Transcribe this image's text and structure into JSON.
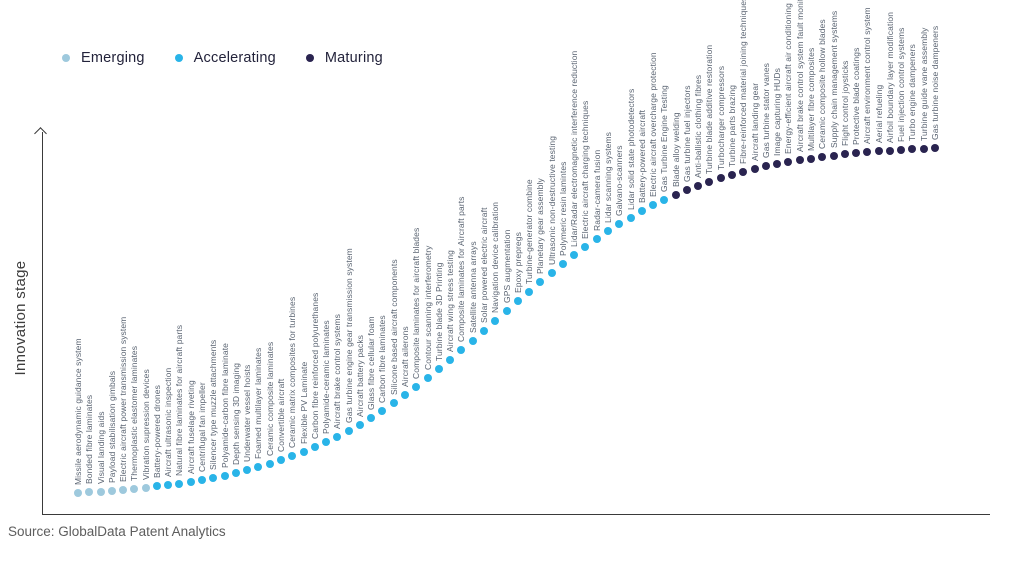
{
  "legend": [
    {
      "label": "Emerging",
      "color": "#9ec9dd"
    },
    {
      "label": "Accelerating",
      "color": "#29b4e8"
    },
    {
      "label": "Maturing",
      "color": "#2a2450"
    }
  ],
  "y_axis_title": "Innovation stage",
  "source_line": "Source: GlobalData Patent Analytics",
  "chart_data": {
    "type": "scatter",
    "title": "",
    "xlabel": "",
    "ylabel": "Innovation stage",
    "legend_position": "top-left",
    "grid": false,
    "curve_shape": "s-curve ascending left-to-right",
    "stage_colors": {
      "Emerging": "#9ec9dd",
      "Accelerating": "#29b4e8",
      "Maturing": "#2a2450"
    },
    "items": [
      {
        "label": "Missile aerodynamic guidance system",
        "stage": "Emerging"
      },
      {
        "label": "Bonded fibre laminates",
        "stage": "Emerging"
      },
      {
        "label": "Visual landing aids",
        "stage": "Emerging"
      },
      {
        "label": "Payload stabilisation gimbals",
        "stage": "Emerging"
      },
      {
        "label": "Electric aircraft power transmission system",
        "stage": "Emerging"
      },
      {
        "label": "Thermoplastic elastomer laminates",
        "stage": "Emerging"
      },
      {
        "label": "Vibration supression devices",
        "stage": "Emerging"
      },
      {
        "label": "Battery-powered drones",
        "stage": "Accelerating"
      },
      {
        "label": "Aircraft ultrasonic inspection",
        "stage": "Accelerating"
      },
      {
        "label": "Natural fibre laminates for aircraft parts",
        "stage": "Accelerating"
      },
      {
        "label": "Aircraft fuselage riveting",
        "stage": "Accelerating"
      },
      {
        "label": "Centrifugal fan impeller",
        "stage": "Accelerating"
      },
      {
        "label": "Silencer type muzzle attachments",
        "stage": "Accelerating"
      },
      {
        "label": "Polyamide-carbon fibre laminate",
        "stage": "Accelerating"
      },
      {
        "label": "Depth sensing 3D imaging",
        "stage": "Accelerating"
      },
      {
        "label": "Underwater vessel hoists",
        "stage": "Accelerating"
      },
      {
        "label": "Foamed multilayer laminates",
        "stage": "Accelerating"
      },
      {
        "label": "Ceramic composite laminates",
        "stage": "Accelerating"
      },
      {
        "label": "Convertible aircraft",
        "stage": "Accelerating"
      },
      {
        "label": "Ceramic matrix composites for turbines",
        "stage": "Accelerating"
      },
      {
        "label": "Flexible PV Laminate",
        "stage": "Accelerating"
      },
      {
        "label": "Carbon fibre reinforced polyurethanes",
        "stage": "Accelerating"
      },
      {
        "label": "Polyamide-ceramic laminates",
        "stage": "Accelerating"
      },
      {
        "label": "Aircraft brake control systems",
        "stage": "Accelerating"
      },
      {
        "label": "Gas turbine engine gear transmission system",
        "stage": "Accelerating"
      },
      {
        "label": "Aircraft battery packs",
        "stage": "Accelerating"
      },
      {
        "label": "Glass fibre cellular foam",
        "stage": "Accelerating"
      },
      {
        "label": "Carbon fibre laminates",
        "stage": "Accelerating"
      },
      {
        "label": "Silicone based aircraft components",
        "stage": "Accelerating"
      },
      {
        "label": "Aircraft ailerons",
        "stage": "Accelerating"
      },
      {
        "label": "Composite laminates for aircraft blades",
        "stage": "Accelerating"
      },
      {
        "label": "Contour scanning interferometry",
        "stage": "Accelerating"
      },
      {
        "label": "Turbine blade 3D Printing",
        "stage": "Accelerating"
      },
      {
        "label": "Aircraft wing stress testing",
        "stage": "Accelerating"
      },
      {
        "label": "Composite laminates for Aircraft parts",
        "stage": "Accelerating"
      },
      {
        "label": "Satellite antenna arrays",
        "stage": "Accelerating"
      },
      {
        "label": "Solar powered electric aircraft",
        "stage": "Accelerating"
      },
      {
        "label": "Navigation device calibration",
        "stage": "Accelerating"
      },
      {
        "label": "GPS augmentation",
        "stage": "Accelerating"
      },
      {
        "label": "Epoxy prepregs",
        "stage": "Accelerating"
      },
      {
        "label": "Turbine-generator combine",
        "stage": "Accelerating"
      },
      {
        "label": "Planetary gear assembly",
        "stage": "Accelerating"
      },
      {
        "label": "Ultrasonic non-destructive testing",
        "stage": "Accelerating"
      },
      {
        "label": "Polymeric resin lamintes",
        "stage": "Accelerating"
      },
      {
        "label": "Lidar/Radar electromagnetic interference reduction",
        "stage": "Accelerating"
      },
      {
        "label": "Electric aircraft charging techniques",
        "stage": "Accelerating"
      },
      {
        "label": "Radar-camera fusion",
        "stage": "Accelerating"
      },
      {
        "label": "Lidar scanning systems",
        "stage": "Accelerating"
      },
      {
        "label": "Galvano-scanners",
        "stage": "Accelerating"
      },
      {
        "label": "Lidar solid state photodetectors",
        "stage": "Accelerating"
      },
      {
        "label": "Battery-powered aircraft",
        "stage": "Accelerating"
      },
      {
        "label": "Electric aircraft overcharge protection",
        "stage": "Accelerating"
      },
      {
        "label": "Gas Turbine Engine Testing",
        "stage": "Accelerating"
      },
      {
        "label": "Blade alloy welding",
        "stage": "Maturing"
      },
      {
        "label": "Gas turbine fuel injectors",
        "stage": "Maturing"
      },
      {
        "label": "Anti-ballistic clothing fibres",
        "stage": "Maturing"
      },
      {
        "label": "Turbine blade additive restoration",
        "stage": "Maturing"
      },
      {
        "label": "Turbocharger compressors",
        "stage": "Maturing"
      },
      {
        "label": "Turbine parts brazing",
        "stage": "Maturing"
      },
      {
        "label": "Fibre-reinforced material joining techniques",
        "stage": "Maturing"
      },
      {
        "label": "Aircraft landing gear",
        "stage": "Maturing"
      },
      {
        "label": "Gas turbine stator vanes",
        "stage": "Maturing"
      },
      {
        "label": "Image capturing HUDs",
        "stage": "Maturing"
      },
      {
        "label": "Energy-efficient aircraft air conditioning",
        "stage": "Maturing"
      },
      {
        "label": "Aircraft brake control system fault monitoring",
        "stage": "Maturing"
      },
      {
        "label": "Multilayer fibre composites",
        "stage": "Maturing"
      },
      {
        "label": "Ceramic composite hollow blades",
        "stage": "Maturing"
      },
      {
        "label": "Supply chain management systems",
        "stage": "Maturing"
      },
      {
        "label": "Flight control joysticks",
        "stage": "Maturing"
      },
      {
        "label": "Protective blade coatings",
        "stage": "Maturing"
      },
      {
        "label": "Aircraft environment control system",
        "stage": "Maturing"
      },
      {
        "label": "Aerial refueling",
        "stage": "Maturing"
      },
      {
        "label": "Airfoil boundary layer modification",
        "stage": "Maturing"
      },
      {
        "label": "Fuel injection control systems",
        "stage": "Maturing"
      },
      {
        "label": "Turbo engine dampeners",
        "stage": "Maturing"
      },
      {
        "label": "Turbine guide vane assembly",
        "stage": "Maturing"
      },
      {
        "label": "Gas turbine noise dampeners",
        "stage": "Maturing"
      }
    ]
  }
}
